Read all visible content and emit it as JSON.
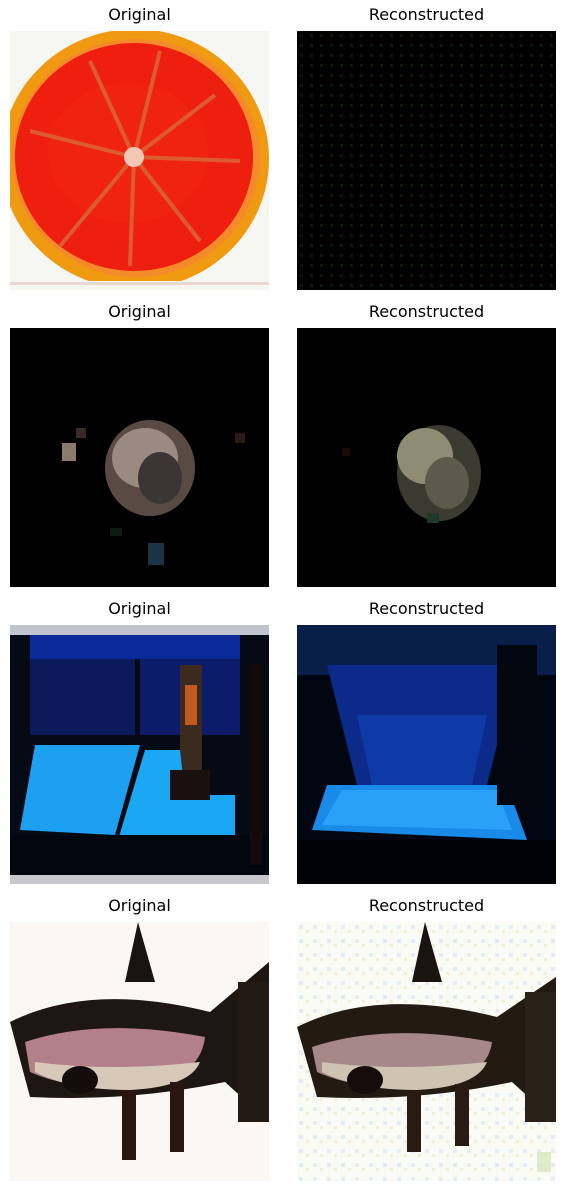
{
  "titles": {
    "original": "Original",
    "reconstructed": "Reconstructed"
  },
  "rows": [
    {
      "original": {
        "title": "Original",
        "subject": "grapefruit slice on white background"
      },
      "reconstructed": {
        "title": "Reconstructed",
        "subject": "nearly black image with faint green grid"
      }
    },
    {
      "original": {
        "title": "Original",
        "subject": "small round object on black background"
      },
      "reconstructed": {
        "title": "Reconstructed",
        "subject": "blurry round object on black background"
      }
    },
    {
      "original": {
        "title": "Original",
        "subject": "blue lit panels in dark scene"
      },
      "reconstructed": {
        "title": "Reconstructed",
        "subject": "blurry blue lit panels in dark scene"
      }
    },
    {
      "original": {
        "title": "Original",
        "subject": "fish on white background"
      },
      "reconstructed": {
        "title": "Reconstructed",
        "subject": "noisy fish on white background"
      }
    }
  ],
  "colors": {
    "background": "#ffffff",
    "text": "#000000"
  }
}
